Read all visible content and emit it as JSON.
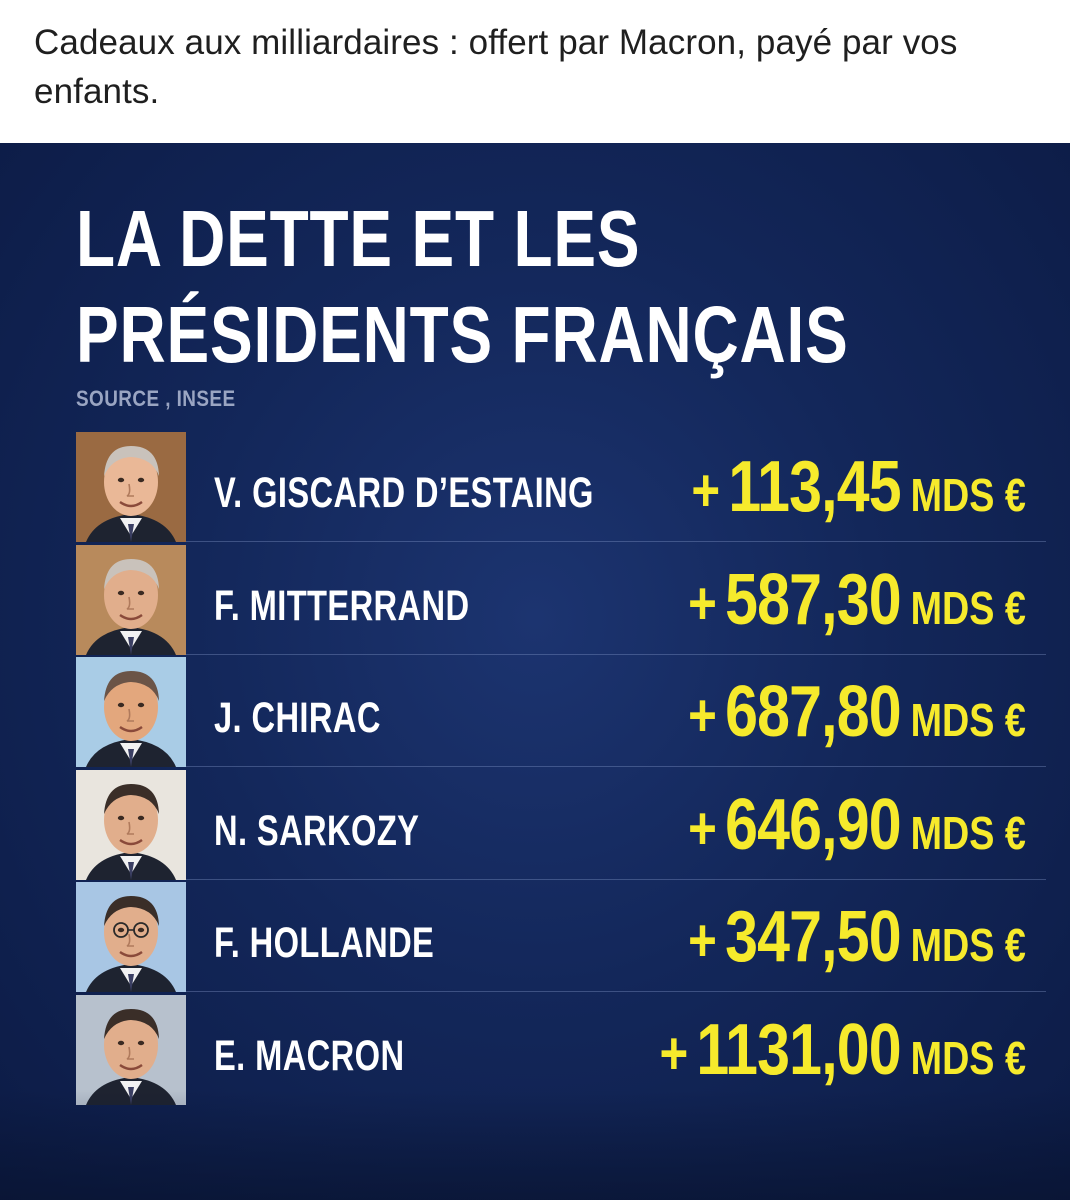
{
  "post": {
    "caption": "Cadeaux aux milliardaires : offert par Macron, payé par vos enfants."
  },
  "infographic": {
    "title_line1": "LA DETTE ET LES",
    "title_line2": "PRÉSIDENTS FRANÇAIS",
    "source": "SOURCE , INSEE",
    "colors": {
      "background": "#13275a",
      "amount": "#f6ea2c",
      "text": "#ffffff"
    },
    "presidents": [
      {
        "name": "V. GISCARD D’ESTAING",
        "plus": "+",
        "value": "113,45",
        "unit": "MDS €",
        "portrait": "portrait-giscard",
        "bg": "#9a6a42"
      },
      {
        "name": "F. MITTERRAND",
        "plus": "+",
        "value": "587,30",
        "unit": "MDS €",
        "portrait": "portrait-mitterrand",
        "bg": "#b88a5c"
      },
      {
        "name": "J. CHIRAC",
        "plus": "+",
        "value": "687,80",
        "unit": "MDS €",
        "portrait": "portrait-chirac",
        "bg": "#a9cce6"
      },
      {
        "name": "N. SARKOZY",
        "plus": "+",
        "value": "646,90",
        "unit": "MDS €",
        "portrait": "portrait-sarkozy",
        "bg": "#e9e5de"
      },
      {
        "name": "F. HOLLANDE",
        "plus": "+",
        "value": "347,50",
        "unit": "MDS €",
        "portrait": "portrait-hollande",
        "bg": "#a8c6e4"
      },
      {
        "name": "E. MACRON",
        "plus": "+",
        "value": "1131,00",
        "unit": "MDS €",
        "portrait": "portrait-macron",
        "bg": "#b7c1cd"
      }
    ]
  }
}
